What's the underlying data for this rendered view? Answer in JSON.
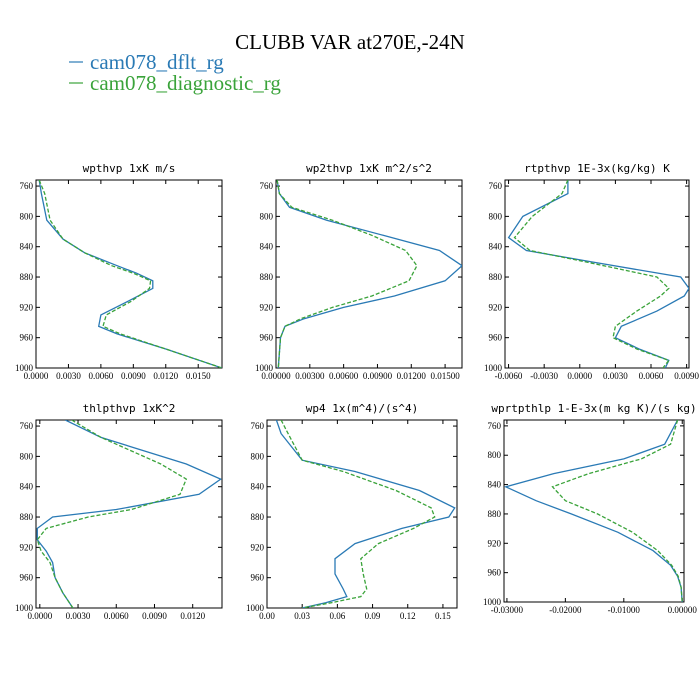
{
  "title": "CLUBB VAR at270E,-24N",
  "colors": {
    "dflt": "#2a7ab5",
    "diagnostic": "#3aa33a"
  },
  "chart_data": [
    {
      "type": "line",
      "title": "wpthvp  1xK m/s",
      "xlim": [
        0,
        0.0172
      ],
      "ylim": [
        1000,
        752
      ],
      "xticks": [
        "0.0000",
        "0.0030",
        "0.0060",
        "0.0090",
        "0.0120",
        "0.0150"
      ],
      "xtick_values": [
        0,
        0.003,
        0.006,
        0.009,
        0.012,
        0.015
      ],
      "yticks": [
        "760",
        "800",
        "840",
        "880",
        "920",
        "960",
        "1000"
      ],
      "ytick_values": [
        760,
        800,
        840,
        880,
        920,
        960,
        1000
      ],
      "series": [
        {
          "name": "cam078_dflt_rg",
          "style": "solid",
          "x": [
            0.0003,
            0.0005,
            0.001,
            0.0025,
            0.0045,
            0.0075,
            0.0093,
            0.0108,
            0.0108,
            0.0085,
            0.006,
            0.0058,
            0.0075,
            0.012,
            0.0172
          ],
          "y": [
            752,
            770,
            805,
            830,
            848,
            865,
            875,
            885,
            895,
            912,
            930,
            945,
            955,
            975,
            1000
          ]
        },
        {
          "name": "cam078_diagnostic_rg",
          "style": "dashed",
          "x": [
            0.0003,
            0.0008,
            0.0013,
            0.0025,
            0.0045,
            0.007,
            0.009,
            0.0106,
            0.0105,
            0.0088,
            0.0065,
            0.0062,
            0.0078,
            0.012,
            0.0172
          ],
          "y": [
            752,
            770,
            805,
            830,
            848,
            865,
            875,
            885,
            895,
            912,
            930,
            945,
            955,
            975,
            1000
          ]
        }
      ]
    },
    {
      "type": "line",
      "title": "wp2thvp  1xK m^2/s^2",
      "xlim": [
        0,
        0.0165
      ],
      "ylim": [
        1000,
        752
      ],
      "xticks": [
        "0.00000",
        "0.00300",
        "0.00600",
        "0.00900",
        "0.01200",
        "0.01500"
      ],
      "xtick_values": [
        0,
        0.003,
        0.006,
        0.009,
        0.012,
        0.015
      ],
      "yticks": [
        "760",
        "800",
        "840",
        "880",
        "920",
        "960",
        "1000"
      ],
      "ytick_values": [
        760,
        800,
        840,
        880,
        920,
        960,
        1000
      ],
      "series": [
        {
          "name": "cam078_dflt_rg",
          "style": "solid",
          "x": [
            0.0001,
            0.0003,
            0.0012,
            0.0045,
            0.0095,
            0.0145,
            0.0165,
            0.015,
            0.0105,
            0.006,
            0.0025,
            0.0008,
            0.0004,
            0.0003,
            0.0002
          ],
          "y": [
            752,
            770,
            788,
            805,
            825,
            845,
            865,
            885,
            905,
            920,
            935,
            945,
            960,
            980,
            1000
          ]
        },
        {
          "name": "cam078_diagnostic_rg",
          "style": "dashed",
          "x": [
            0.0001,
            0.0003,
            0.0014,
            0.005,
            0.0085,
            0.0115,
            0.0125,
            0.0118,
            0.0085,
            0.005,
            0.0022,
            0.0008,
            0.0004,
            0.0003,
            0.0002
          ],
          "y": [
            752,
            770,
            788,
            805,
            825,
            845,
            865,
            885,
            905,
            920,
            935,
            945,
            960,
            980,
            1000
          ]
        }
      ]
    },
    {
      "type": "line",
      "title": "rtpthvp  1E-3x(kg/kg) K",
      "xlim": [
        -0.0063,
        0.0092
      ],
      "ylim": [
        1000,
        752
      ],
      "xticks": [
        "-0.0060",
        "-0.0030",
        "0.0000",
        "0.0030",
        "0.0060",
        "0.0090"
      ],
      "xtick_values": [
        -0.006,
        -0.003,
        0,
        0.003,
        0.006,
        0.009
      ],
      "yticks": [
        "760",
        "800",
        "840",
        "880",
        "920",
        "960",
        "1000"
      ],
      "ytick_values": [
        760,
        800,
        840,
        880,
        920,
        960,
        1000
      ],
      "series": [
        {
          "name": "cam078_dflt_rg",
          "style": "solid",
          "x": [
            -0.001,
            -0.001,
            -0.0048,
            -0.006,
            -0.0045,
            0.001,
            0.0085,
            0.0092,
            0.0088,
            0.0065,
            0.0035,
            0.003,
            0.005,
            0.0075,
            0.0072
          ],
          "y": [
            752,
            770,
            800,
            828,
            845,
            860,
            880,
            895,
            905,
            925,
            945,
            960,
            975,
            990,
            1000
          ]
        },
        {
          "name": "cam078_diagnostic_rg",
          "style": "dashed",
          "x": [
            -0.001,
            -0.0015,
            -0.004,
            -0.0055,
            -0.0042,
            0.0005,
            0.0065,
            0.0075,
            0.0068,
            0.0048,
            0.003,
            0.0028,
            0.0048,
            0.0075,
            0.007
          ],
          "y": [
            752,
            770,
            800,
            828,
            845,
            860,
            880,
            895,
            905,
            925,
            945,
            960,
            975,
            990,
            1000
          ]
        }
      ]
    },
    {
      "type": "line",
      "title": "thlpthvp  1xK^2",
      "xlim": [
        -0.0003,
        0.0143
      ],
      "ylim": [
        1000,
        752
      ],
      "xticks": [
        "0.0000",
        "0.0030",
        "0.0060",
        "0.0090",
        "0.0120"
      ],
      "xtick_values": [
        0,
        0.003,
        0.006,
        0.009,
        0.012
      ],
      "yticks": [
        "760",
        "800",
        "840",
        "880",
        "920",
        "960",
        "1000"
      ],
      "ytick_values": [
        760,
        800,
        840,
        880,
        920,
        960,
        1000
      ],
      "series": [
        {
          "name": "cam078_dflt_rg",
          "style": "solid",
          "x": [
            0.002,
            0.0048,
            0.0115,
            0.0142,
            0.0125,
            0.006,
            0.001,
            -0.0002,
            -0.0002,
            0.0005,
            0.001,
            0.0012,
            0.0018,
            0.0026
          ],
          "y": [
            752,
            775,
            810,
            830,
            850,
            870,
            880,
            895,
            910,
            925,
            940,
            960,
            980,
            1000
          ]
        },
        {
          "name": "cam078_diagnostic_rg",
          "style": "dashed",
          "x": [
            0.0025,
            0.0048,
            0.0095,
            0.0115,
            0.011,
            0.0072,
            0.0038,
            0.0005,
            -0.0002,
            0.0001,
            0.0008,
            0.0012,
            0.0018,
            0.0026
          ],
          "y": [
            752,
            775,
            810,
            830,
            850,
            870,
            880,
            895,
            910,
            925,
            940,
            960,
            980,
            1000
          ]
        }
      ]
    },
    {
      "type": "line",
      "title": "wp4  1x(m^4)/(s^4)",
      "xlim": [
        0,
        0.162
      ],
      "ylim": [
        1000,
        752
      ],
      "xticks": [
        "0.00",
        "0.03",
        "0.06",
        "0.09",
        "0.12",
        "0.15"
      ],
      "xtick_values": [
        0,
        0.03,
        0.06,
        0.09,
        0.12,
        0.15
      ],
      "yticks": [
        "760",
        "800",
        "840",
        "880",
        "920",
        "960",
        "1000"
      ],
      "ytick_values": [
        760,
        800,
        840,
        880,
        920,
        960,
        1000
      ],
      "series": [
        {
          "name": "cam078_dflt_rg",
          "style": "solid",
          "x": [
            0.008,
            0.012,
            0.03,
            0.075,
            0.13,
            0.16,
            0.155,
            0.115,
            0.075,
            0.058,
            0.058,
            0.065,
            0.068,
            0.05,
            0.03
          ],
          "y": [
            752,
            770,
            805,
            820,
            845,
            868,
            880,
            895,
            915,
            935,
            955,
            975,
            985,
            993,
            1000
          ]
        },
        {
          "name": "cam078_diagnostic_rg",
          "style": "dashed",
          "x": [
            0.012,
            0.018,
            0.03,
            0.065,
            0.11,
            0.14,
            0.143,
            0.125,
            0.095,
            0.08,
            0.082,
            0.085,
            0.08,
            0.055,
            0.03
          ],
          "y": [
            752,
            770,
            805,
            820,
            845,
            868,
            880,
            895,
            915,
            935,
            955,
            975,
            985,
            993,
            1000
          ]
        }
      ]
    },
    {
      "type": "line",
      "title": "wprtpthlp  1-E-3x(m kg K)/(s kg)",
      "xlim": [
        -0.0305,
        0.0003
      ],
      "ylim": [
        1000,
        752
      ],
      "xticks": [
        "-0.03000",
        "-0.02000",
        "-0.01000",
        "0.00000"
      ],
      "xtick_values": [
        -0.03,
        -0.02,
        -0.01,
        0
      ],
      "yticks": [
        "760",
        "800",
        "840",
        "880",
        "920",
        "960",
        "1000"
      ],
      "ytick_values": [
        760,
        800,
        840,
        880,
        920,
        960,
        1000
      ],
      "series": [
        {
          "name": "cam078_dflt_rg",
          "style": "solid",
          "x": [
            -0.0008,
            -0.003,
            -0.01,
            -0.022,
            -0.0302,
            -0.025,
            -0.019,
            -0.011,
            -0.005,
            -0.002,
            -0.0008,
            -0.0002,
            0
          ],
          "y": [
            752,
            785,
            805,
            825,
            843,
            862,
            880,
            905,
            930,
            950,
            965,
            980,
            1000
          ]
        },
        {
          "name": "cam078_diagnostic_rg",
          "style": "dashed",
          "x": [
            -0.0008,
            -0.002,
            -0.007,
            -0.016,
            -0.0222,
            -0.02,
            -0.0145,
            -0.0085,
            -0.0042,
            -0.0018,
            -0.0007,
            -0.0002,
            0
          ],
          "y": [
            752,
            785,
            805,
            825,
            843,
            862,
            880,
            905,
            930,
            950,
            965,
            980,
            1000
          ]
        }
      ]
    }
  ]
}
